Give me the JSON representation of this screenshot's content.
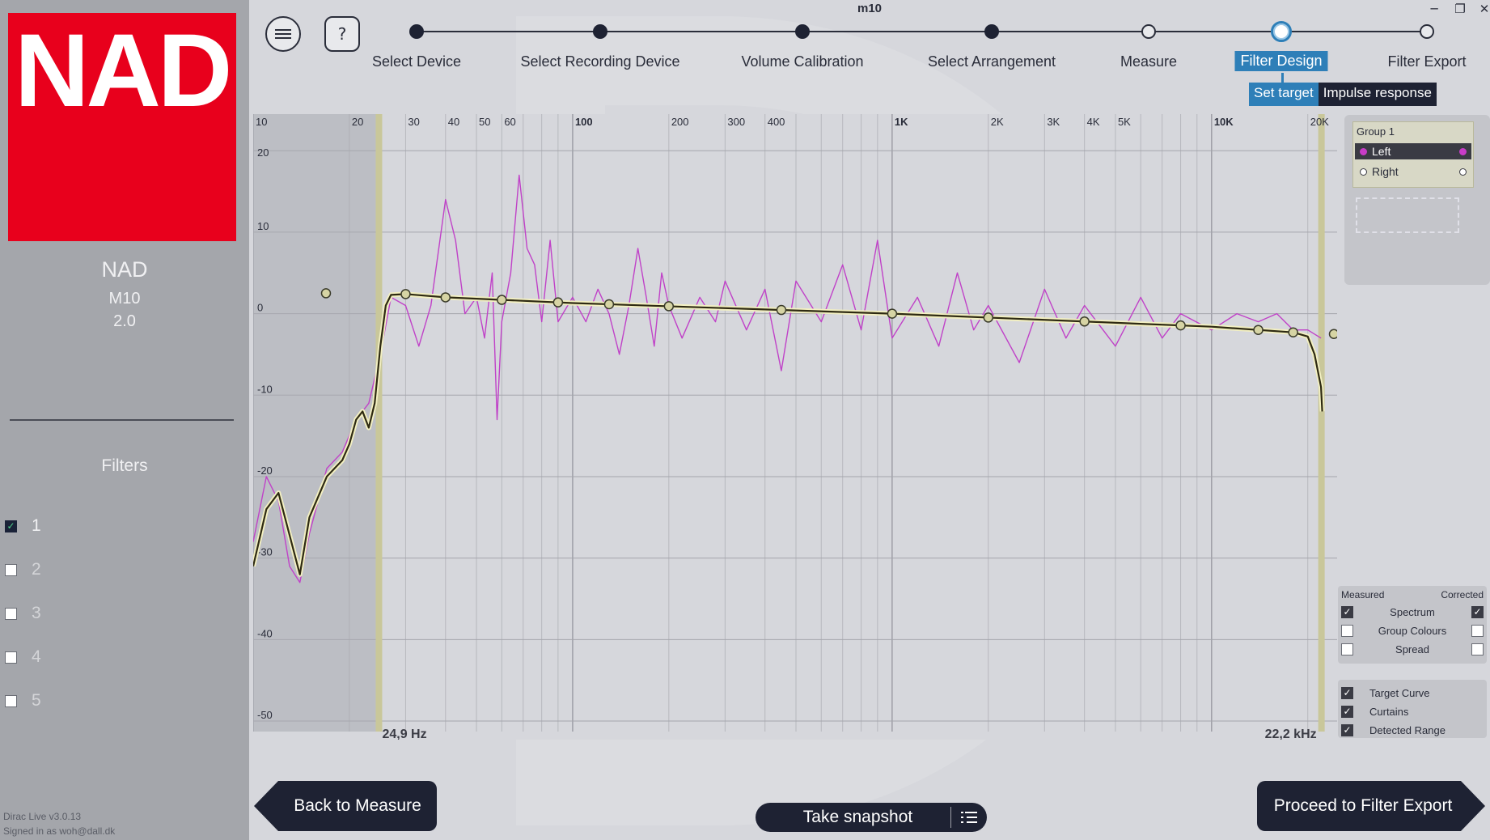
{
  "app": {
    "window_title": "m10",
    "version": "Dirac Live v3.0.13",
    "signed_in": "Signed in as woh@dall.dk",
    "controls": {
      "minimize": "─",
      "restore": "❐",
      "close": "✕"
    }
  },
  "device": {
    "logo_text": "NAD",
    "brand": "NAD",
    "model": "M10",
    "version": "2.0"
  },
  "filters": {
    "heading": "Filters",
    "items": [
      {
        "label": "1",
        "checked": true
      },
      {
        "label": "2",
        "checked": false
      },
      {
        "label": "3",
        "checked": false
      },
      {
        "label": "4",
        "checked": false
      },
      {
        "label": "5",
        "checked": false
      }
    ]
  },
  "toolbar": {
    "menu_icon": "hamburger-icon",
    "help_label": "?"
  },
  "steps": [
    {
      "label": "Select Device",
      "state": "done"
    },
    {
      "label": "Select Recording Device",
      "state": "done"
    },
    {
      "label": "Volume Calibration",
      "state": "done"
    },
    {
      "label": "Select Arrangement",
      "state": "done"
    },
    {
      "label": "Measure",
      "state": "open"
    },
    {
      "label": "Filter Design",
      "state": "active"
    },
    {
      "label": "Filter Export",
      "state": "open"
    }
  ],
  "subtabs": {
    "target": "Set target",
    "impulse": "Impulse response"
  },
  "chart_data": {
    "type": "line",
    "x_scale": "log",
    "xlim": [
      10,
      24000
    ],
    "ylim": [
      -50,
      23
    ],
    "x_ticks": [
      {
        "v": 10,
        "label": "10"
      },
      {
        "v": 20,
        "label": "20"
      },
      {
        "v": 30,
        "label": "30"
      },
      {
        "v": 40,
        "label": "40"
      },
      {
        "v": 50,
        "label": "50"
      },
      {
        "v": 60,
        "label": "60"
      },
      {
        "v": 100,
        "label": "100"
      },
      {
        "v": 200,
        "label": "200"
      },
      {
        "v": 300,
        "label": "300"
      },
      {
        "v": 400,
        "label": "400"
      },
      {
        "v": 1000,
        "label": "1K"
      },
      {
        "v": 2000,
        "label": "2K"
      },
      {
        "v": 3000,
        "label": "3K"
      },
      {
        "v": 4000,
        "label": "4K"
      },
      {
        "v": 5000,
        "label": "5K"
      },
      {
        "v": 10000,
        "label": "10K"
      },
      {
        "v": 20000,
        "label": "20K"
      }
    ],
    "y_ticks": [
      20,
      10,
      0,
      -10,
      -20,
      -30,
      -40,
      -50
    ],
    "curtain_low": {
      "hz": 24.9,
      "label": "24,9 Hz"
    },
    "curtain_high": {
      "hz": 22200,
      "label": "22,2 kHz"
    },
    "series": [
      {
        "id": "target",
        "color": "#2e2a12",
        "points": [
          [
            10,
            -31
          ],
          [
            11,
            -24
          ],
          [
            12,
            -22
          ],
          [
            14,
            -32
          ],
          [
            15,
            -25
          ],
          [
            17,
            -20
          ],
          [
            19,
            -18
          ],
          [
            20,
            -16
          ],
          [
            21,
            -13
          ],
          [
            22,
            -12
          ],
          [
            23,
            -14
          ],
          [
            24,
            -11
          ],
          [
            25,
            -4
          ],
          [
            26,
            1
          ],
          [
            27,
            2.3
          ],
          [
            30,
            2.4
          ],
          [
            40,
            2
          ],
          [
            100,
            1.3
          ],
          [
            1000,
            0
          ],
          [
            10000,
            -1.6
          ],
          [
            18000,
            -2.3
          ],
          [
            20000,
            -2.8
          ],
          [
            21000,
            -5
          ],
          [
            22000,
            -9
          ],
          [
            22200,
            -12
          ]
        ]
      },
      {
        "id": "left-measured",
        "color": "#c042c8",
        "points": [
          [
            10,
            -28
          ],
          [
            11,
            -20
          ],
          [
            12,
            -23
          ],
          [
            13,
            -31
          ],
          [
            14,
            -33
          ],
          [
            15,
            -27
          ],
          [
            17,
            -19
          ],
          [
            19,
            -17
          ],
          [
            21,
            -13
          ],
          [
            23,
            -11
          ],
          [
            25,
            -5
          ],
          [
            27,
            2
          ],
          [
            30,
            1
          ],
          [
            33,
            -4
          ],
          [
            36,
            1
          ],
          [
            40,
            14
          ],
          [
            43,
            9
          ],
          [
            46,
            0
          ],
          [
            50,
            2
          ],
          [
            53,
            -3
          ],
          [
            56,
            5
          ],
          [
            58,
            -13
          ],
          [
            60,
            -1
          ],
          [
            64,
            5
          ],
          [
            68,
            17
          ],
          [
            72,
            8
          ],
          [
            76,
            6
          ],
          [
            80,
            -1
          ],
          [
            85,
            9
          ],
          [
            90,
            -1
          ],
          [
            100,
            2
          ],
          [
            110,
            -1
          ],
          [
            120,
            3
          ],
          [
            130,
            0
          ],
          [
            140,
            -5
          ],
          [
            150,
            1
          ],
          [
            160,
            8
          ],
          [
            170,
            2
          ],
          [
            180,
            -4
          ],
          [
            190,
            5
          ],
          [
            200,
            1
          ],
          [
            220,
            -3
          ],
          [
            250,
            2
          ],
          [
            280,
            -1
          ],
          [
            300,
            4
          ],
          [
            350,
            -2
          ],
          [
            400,
            3
          ],
          [
            450,
            -7
          ],
          [
            500,
            4
          ],
          [
            600,
            -1
          ],
          [
            700,
            6
          ],
          [
            800,
            -2
          ],
          [
            900,
            9
          ],
          [
            1000,
            -3
          ],
          [
            1200,
            2
          ],
          [
            1400,
            -4
          ],
          [
            1600,
            5
          ],
          [
            1800,
            -2
          ],
          [
            2000,
            1
          ],
          [
            2500,
            -6
          ],
          [
            3000,
            3
          ],
          [
            3500,
            -3
          ],
          [
            4000,
            1
          ],
          [
            5000,
            -4
          ],
          [
            6000,
            2
          ],
          [
            7000,
            -3
          ],
          [
            8000,
            0
          ],
          [
            10000,
            -2
          ],
          [
            12000,
            0
          ],
          [
            14000,
            -1
          ],
          [
            16000,
            0
          ],
          [
            18000,
            -2
          ],
          [
            20000,
            -2
          ],
          [
            22000,
            -3
          ]
        ]
      }
    ],
    "target_nodes": [
      30,
      40,
      60,
      90,
      130,
      200,
      450,
      1000,
      2000,
      4000,
      8000,
      14000,
      18000
    ]
  },
  "group_panel": {
    "title": "Group 1",
    "channels": [
      {
        "label": "Left",
        "color": "#c83cc8",
        "selected": true
      },
      {
        "label": "Right",
        "color": "#ffffff",
        "selected": false
      }
    ]
  },
  "legend": {
    "measured": "Measured",
    "corrected": "Corrected",
    "rows": [
      {
        "label": "Spectrum",
        "measured": true,
        "corrected": true
      },
      {
        "label": "Group Colours",
        "measured": false,
        "corrected": false
      },
      {
        "label": "Spread",
        "measured": false,
        "corrected": false
      }
    ]
  },
  "display": {
    "rows": [
      {
        "label": "Target Curve",
        "checked": true
      },
      {
        "label": "Curtains",
        "checked": true
      },
      {
        "label": "Detected Range",
        "checked": true
      }
    ]
  },
  "bottom": {
    "back": "Back to Measure",
    "snapshot": "Take snapshot",
    "proceed": "Proceed to Filter Export"
  }
}
